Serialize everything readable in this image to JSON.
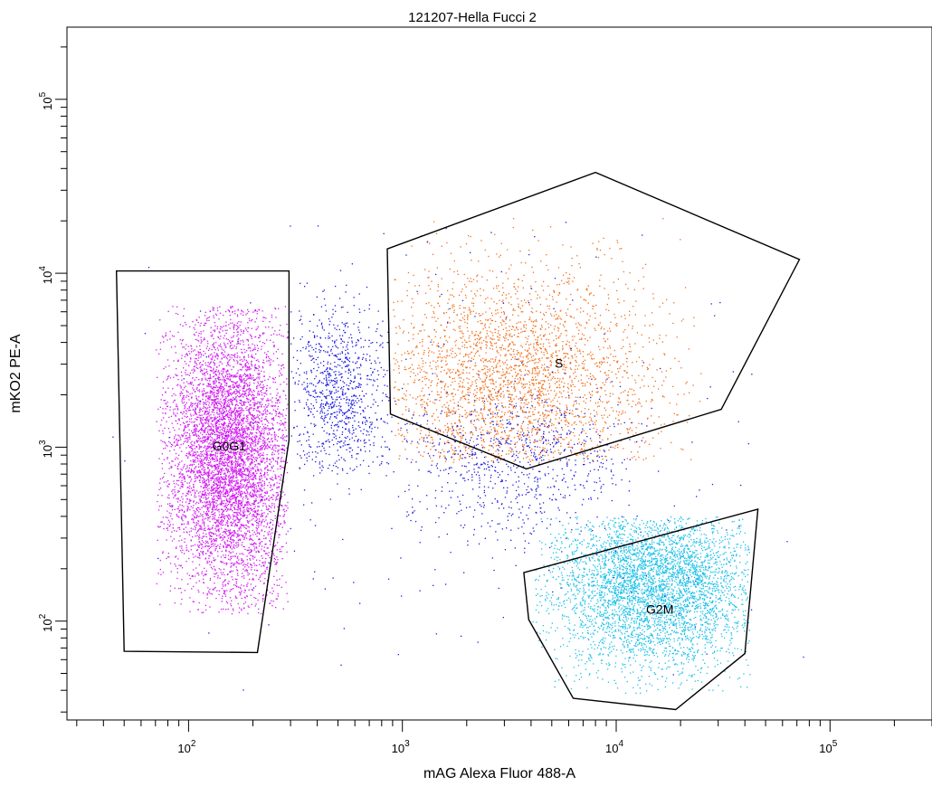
{
  "chart_data": {
    "type": "scatter",
    "title": "121207-Hella Fucci 2",
    "xlabel": "mAG Alexa Fluor 488-A",
    "ylabel": "mKO2 PE-A",
    "x_scale": "log",
    "y_scale": "log",
    "xlim": [
      27,
      300000
    ],
    "ylim": [
      27,
      260000
    ],
    "x_ticks": [
      {
        "value": 100,
        "base": "10",
        "exp": "2"
      },
      {
        "value": 1000,
        "base": "10",
        "exp": "3"
      },
      {
        "value": 10000,
        "base": "10",
        "exp": "4"
      },
      {
        "value": 100000,
        "base": "10",
        "exp": "5"
      }
    ],
    "y_ticks": [
      {
        "value": 100,
        "base": "10",
        "exp": "2"
      },
      {
        "value": 1000,
        "base": "10",
        "exp": "3"
      },
      {
        "value": 10000,
        "base": "10",
        "exp": "4"
      },
      {
        "value": 100000,
        "base": "10",
        "exp": "5"
      }
    ],
    "grid": false,
    "colors": {
      "ungated": "#1c1ce0",
      "G0G1": "#d21cf0",
      "S": "#f26f1c",
      "G2M": "#1cc0e8",
      "gate_line": "#000000"
    },
    "gates": [
      {
        "name": "G0G1",
        "polygon": [
          [
            46,
            10300
          ],
          [
            295,
            10300
          ],
          [
            295,
            1100
          ],
          [
            210,
            66
          ],
          [
            50,
            67
          ]
        ]
      },
      {
        "name": "S",
        "polygon": [
          [
            850,
            13800
          ],
          [
            8000,
            38000
          ],
          [
            72000,
            12000
          ],
          [
            31000,
            1650
          ],
          [
            3800,
            750
          ],
          [
            880,
            1550
          ]
        ]
      },
      {
        "name": "G2M",
        "polygon": [
          [
            3700,
            190
          ],
          [
            46000,
            440
          ],
          [
            40000,
            65
          ],
          [
            19000,
            31
          ],
          [
            6300,
            36
          ],
          [
            3900,
            102
          ]
        ]
      }
    ],
    "populations": [
      {
        "name": "G0G1",
        "center": [
          155,
          900
        ],
        "x_range": [
          70,
          290
        ],
        "y_range": [
          110,
          6500
        ],
        "count": 6000
      },
      {
        "name": "S",
        "center": [
          3200,
          2400
        ],
        "x_range": [
          900,
          25000
        ],
        "y_range": [
          820,
          22000
        ],
        "count": 2800
      },
      {
        "name": "G2M",
        "center": [
          15000,
          160
        ],
        "x_range": [
          4000,
          42000
        ],
        "y_range": [
          38,
          400
        ],
        "count": 4200
      },
      {
        "name": "ungated",
        "center": [
          500,
          2000
        ],
        "x_range": [
          300,
          900
        ],
        "y_range": [
          700,
          9000
        ],
        "count": 900
      },
      {
        "name": "ungated",
        "center": [
          3500,
          800
        ],
        "x_range": [
          1000,
          12000
        ],
        "y_range": [
          250,
          2000
        ],
        "count": 700
      },
      {
        "name": "ungated",
        "center": [
          2000,
          1000
        ],
        "x_range": [
          40,
          80000
        ],
        "y_range": [
          40,
          20000
        ],
        "count": 300
      }
    ]
  }
}
